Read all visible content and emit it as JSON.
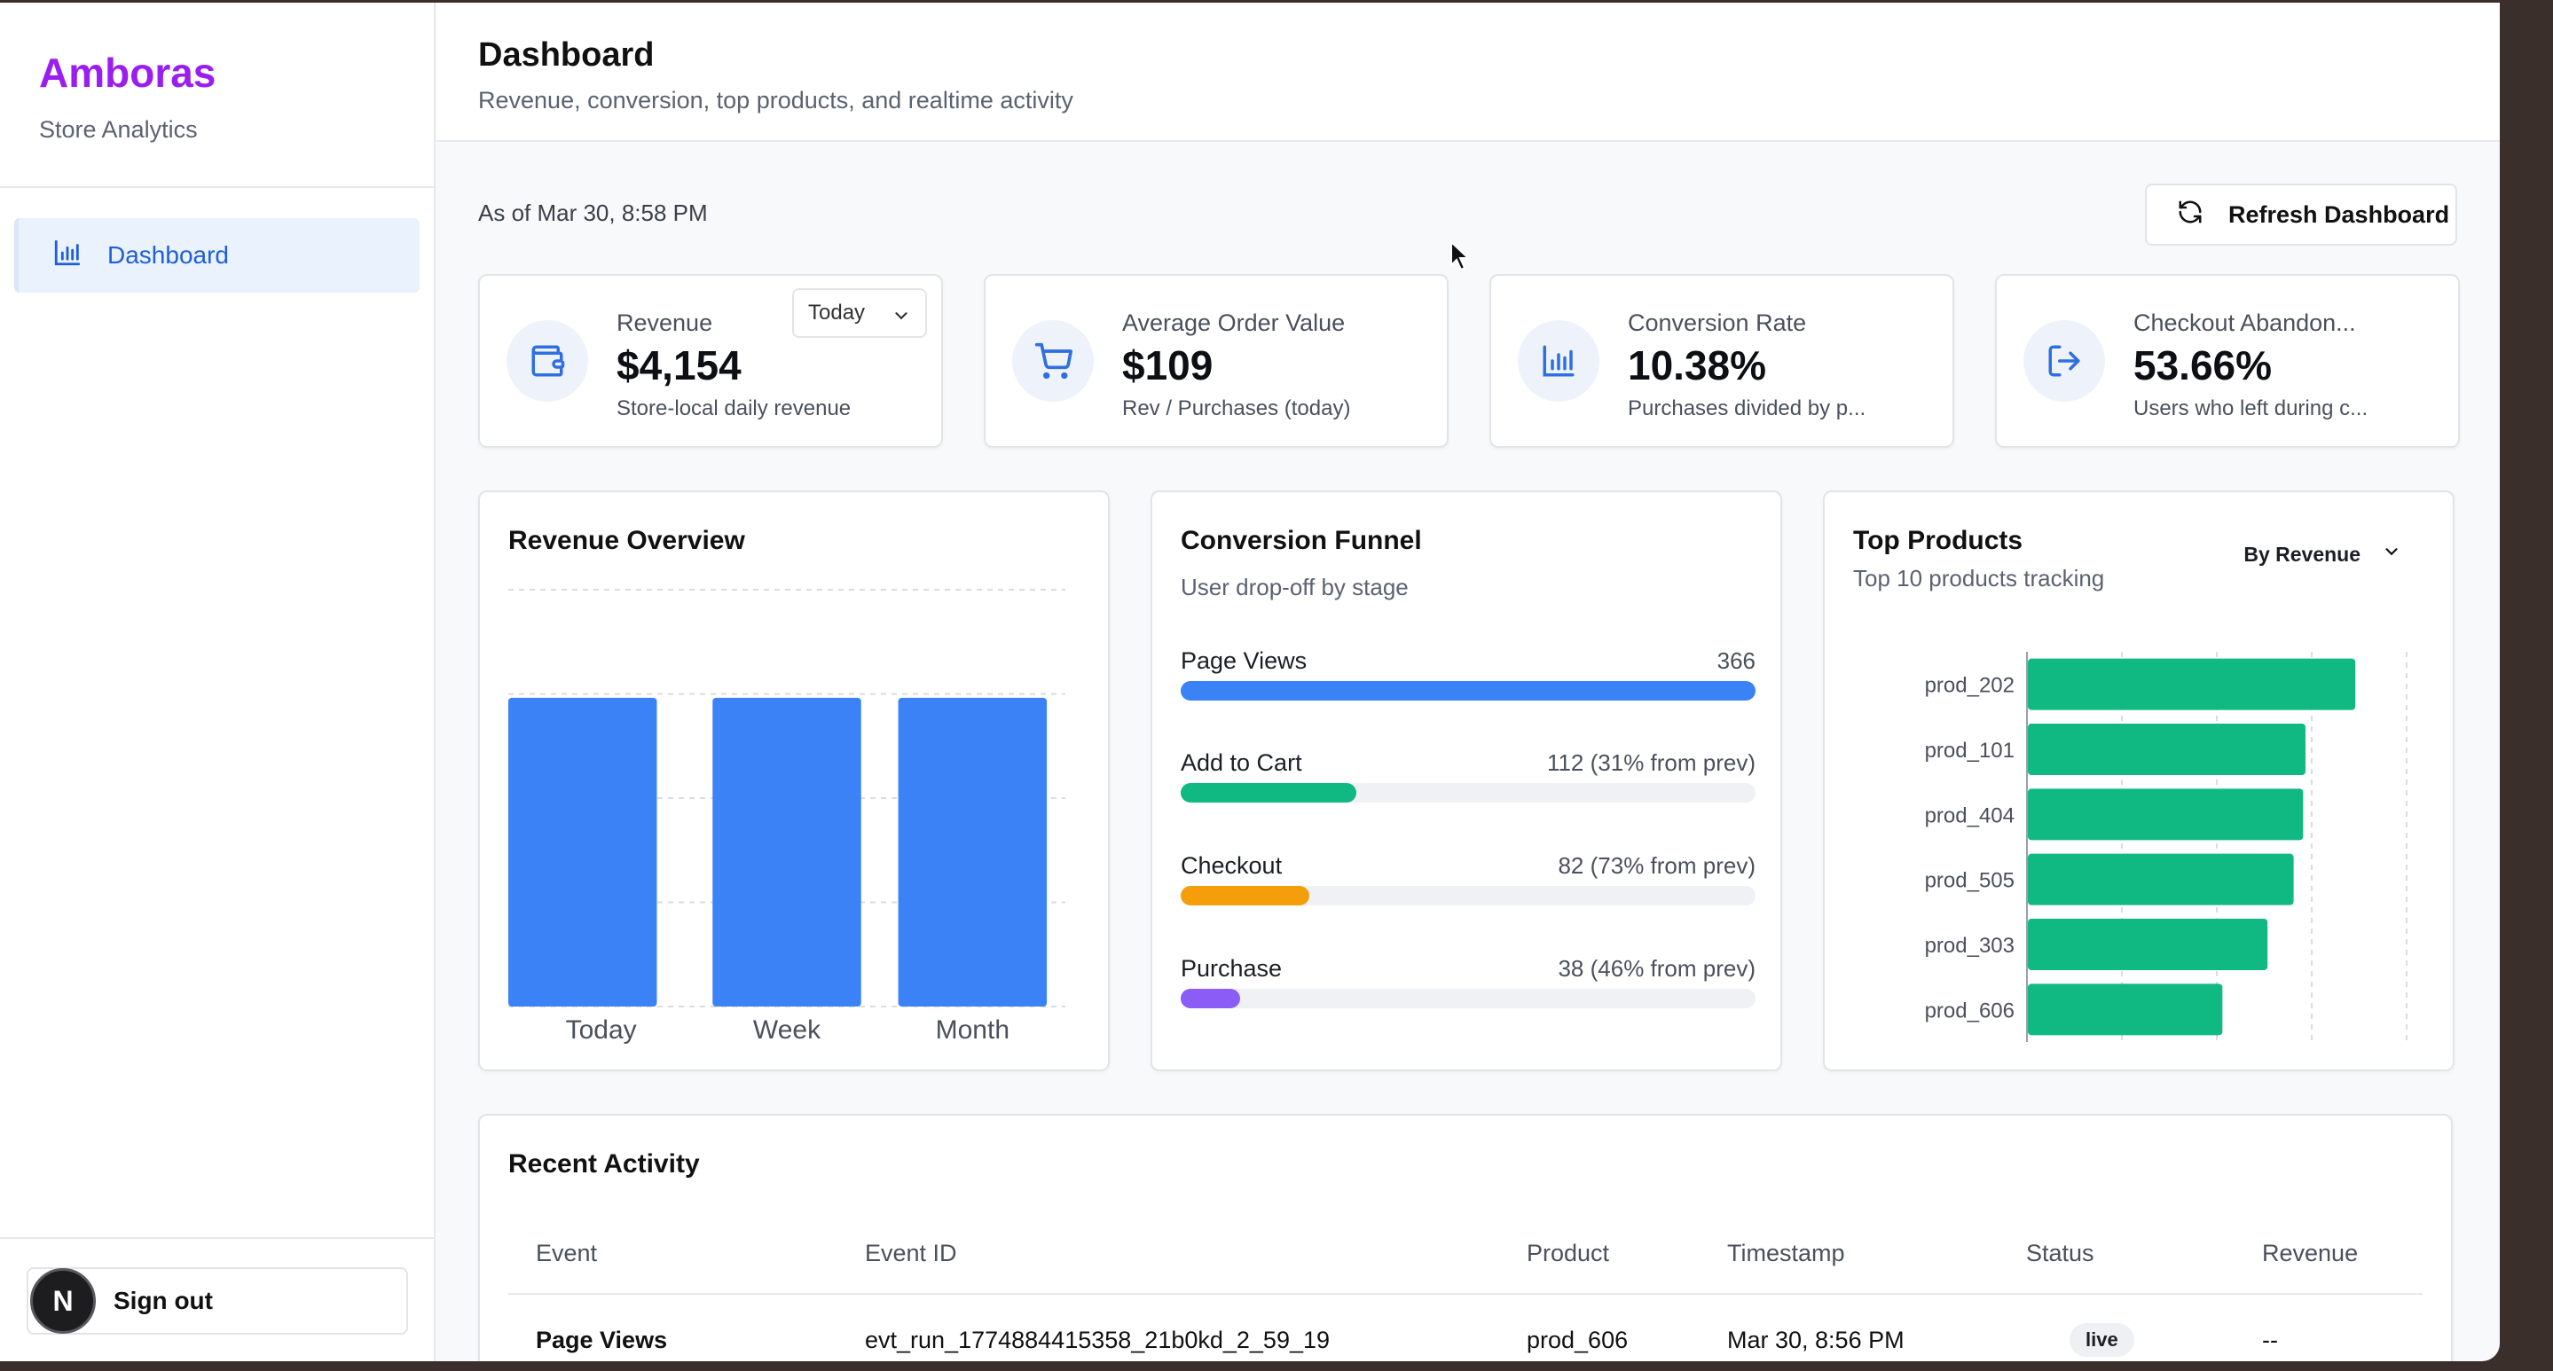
{
  "sidebar": {
    "brand": "Amboras",
    "subtitle": "Store Analytics",
    "nav": [
      {
        "label": "Dashboard",
        "icon": "bar-chart-icon",
        "active": true
      }
    ],
    "signout": {
      "avatar_letter": "N",
      "label": "Sign out"
    }
  },
  "header": {
    "title": "Dashboard",
    "subtitle": "Revenue, conversion, top products, and realtime activity"
  },
  "toolbar": {
    "as_of": "As of Mar 30, 8:58 PM",
    "refresh_label": "Refresh Dashboard"
  },
  "kpis": [
    {
      "label": "Revenue",
      "value": "$4,154",
      "note": "Store-local daily revenue",
      "icon": "wallet-icon",
      "range": "Today"
    },
    {
      "label": "Average Order Value",
      "value": "$109",
      "note": "Rev / Purchases (today)",
      "icon": "cart-icon"
    },
    {
      "label": "Conversion Rate",
      "value": "10.38%",
      "note": "Purchases divided by p...",
      "icon": "bar-chart-icon"
    },
    {
      "label": "Checkout Abandon...",
      "value": "53.66%",
      "note": "Users who left during c...",
      "icon": "exit-icon"
    }
  ],
  "revenue_overview": {
    "title": "Revenue Overview",
    "chart_data": {
      "type": "bar",
      "categories": [
        "Today",
        "Week",
        "Month"
      ],
      "values": [
        4154,
        4154,
        4154
      ],
      "grid": true,
      "color": "#3b82f6"
    }
  },
  "funnel": {
    "title": "Conversion Funnel",
    "subtitle": "User drop-off by stage",
    "stages": [
      {
        "name": "Page Views",
        "count": "366",
        "fraction": 1.0,
        "color": "#3b82f6"
      },
      {
        "name": "Add to Cart",
        "count": "112 (31% from prev)",
        "fraction": 0.306,
        "color": "#10b981"
      },
      {
        "name": "Checkout",
        "count": "82 (73% from prev)",
        "fraction": 0.224,
        "color": "#f59e0b"
      },
      {
        "name": "Purchase",
        "count": "38 (46% from prev)",
        "fraction": 0.104,
        "color": "#8b5cf6"
      }
    ]
  },
  "top_products": {
    "title": "Top Products",
    "subtitle": "Top 10 products tracking",
    "sort_label": "By Revenue",
    "chart_data": {
      "type": "bar",
      "orientation": "horizontal",
      "categories": [
        "prod_202",
        "prod_101",
        "prod_404",
        "prod_505",
        "prod_303",
        "prod_606"
      ],
      "values": [
        1380,
        1170,
        1160,
        1120,
        1010,
        820
      ],
      "xlim": [
        0,
        1600
      ],
      "grid": true,
      "color": "#10b981"
    }
  },
  "activity": {
    "title": "Recent Activity",
    "columns": [
      "Event",
      "Event ID",
      "Product",
      "Timestamp",
      "Status",
      "Revenue"
    ],
    "rows": [
      {
        "event": "Page Views",
        "event_id": "evt_run_1774884415358_21b0kd_2_59_19",
        "product": "prod_606",
        "timestamp": "Mar 30, 8:56 PM",
        "status": "live",
        "revenue": "--"
      }
    ]
  }
}
